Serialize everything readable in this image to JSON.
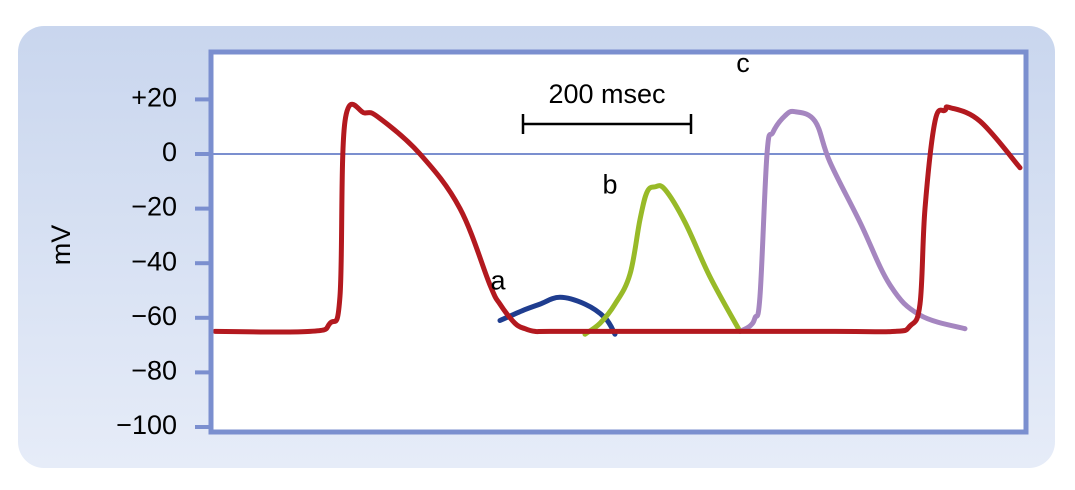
{
  "chart_data": {
    "type": "line",
    "title": "",
    "xlabel": "",
    "ylabel": "mV",
    "ylim": [
      -100,
      30
    ],
    "y_ticks": [
      {
        "value": 20,
        "label": "+20"
      },
      {
        "value": 0,
        "label": "0"
      },
      {
        "value": -20,
        "label": "−20"
      },
      {
        "value": -40,
        "label": "−40"
      },
      {
        "value": -60,
        "label": "−60"
      },
      {
        "value": -80,
        "label": "−80"
      },
      {
        "value": -100,
        "label": "−100"
      }
    ],
    "scale_bar": {
      "label": "200 msec",
      "duration_ms": 200
    },
    "zero_line": true,
    "colors": {
      "frame": "#7b8fcf",
      "panel": "#d4def2",
      "zero_line": "#7b8fcf",
      "main": "#b3191f",
      "a": "#1f3d8f",
      "b": "#98ba28",
      "c": "#a586c0"
    },
    "series": [
      {
        "key": "main",
        "label": "",
        "x": [
          0,
          95,
          115,
          125,
          130,
          150,
          165,
          205,
          245,
          275,
          285,
          300,
          310,
          320,
          335,
          420,
          620,
          680,
          695,
          705,
          710,
          720,
          730,
          735,
          765,
          805
        ],
        "y": [
          -65,
          -65,
          -62,
          -52,
          12,
          15,
          13,
          0,
          -20,
          -48,
          -55,
          -62,
          -64,
          -65,
          -65,
          -65,
          -65,
          -65,
          -63,
          -55,
          -20,
          12,
          16,
          17,
          12,
          -5
        ]
      },
      {
        "key": "a",
        "label": "a",
        "x": [
          285,
          310,
          325,
          345,
          370,
          390,
          400
        ],
        "y": [
          -61,
          -57,
          -55,
          -52.5,
          -55,
          -60,
          -66
        ]
      },
      {
        "key": "b",
        "label": "b",
        "x": [
          370,
          385,
          400,
          415,
          425,
          432,
          440,
          450,
          470,
          495,
          525
        ],
        "y": [
          -66,
          -62,
          -55,
          -44,
          -24,
          -14,
          -12,
          -13,
          -25,
          -45,
          -65
        ]
      },
      {
        "key": "c",
        "label": "c",
        "x": [
          525,
          535,
          540,
          545,
          552,
          558,
          570,
          580,
          600,
          615,
          645,
          675,
          705,
          750
        ],
        "y": [
          -65,
          -63,
          -60,
          -52,
          0,
          8,
          14,
          15.5,
          12,
          -3,
          -25,
          -48,
          -59,
          -64
        ]
      }
    ],
    "labels": [
      {
        "text": "a",
        "series": "a"
      },
      {
        "text": "b",
        "series": "b"
      },
      {
        "text": "c",
        "series": "c"
      }
    ]
  }
}
